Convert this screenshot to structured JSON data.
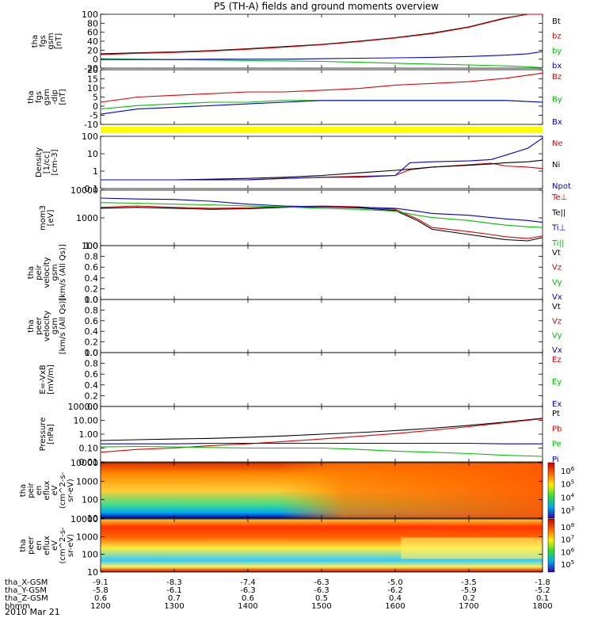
{
  "title": "P5 (TH-A) fields and ground moments overview",
  "date_label": "2010 Mar 21",
  "colors": {
    "black": "#000000",
    "red": "#e00000",
    "green": "#00c000",
    "blue": "#0000d0",
    "yellow": "#ffff00"
  },
  "chart_data": [
    {
      "type": "line",
      "id": "fgs",
      "ylabel": [
        "tha",
        "fgs",
        "gsm",
        "[nT]"
      ],
      "yticks": [
        "100",
        "80",
        "60",
        "40",
        "20",
        "0",
        "-20"
      ],
      "ylim": [
        -20,
        100
      ],
      "legend": [
        {
          "name": "Bt",
          "color": "black"
        },
        {
          "name": "bz",
          "color": "red"
        },
        {
          "name": "by",
          "color": "green"
        },
        {
          "name": "bx",
          "color": "blue"
        }
      ],
      "x": [
        12.0,
        12.5,
        13.0,
        13.5,
        14.0,
        14.5,
        15.0,
        15.5,
        16.0,
        16.5,
        17.0,
        17.5,
        17.8,
        18.0
      ],
      "series": [
        {
          "name": "Bt",
          "color": "black",
          "values": [
            12,
            14,
            16,
            19,
            23,
            28,
            33,
            40,
            48,
            58,
            72,
            92,
            102,
            110
          ]
        },
        {
          "name": "bz",
          "color": "red",
          "values": [
            10,
            13,
            15,
            18,
            22,
            27,
            32,
            39,
            47,
            57,
            71,
            91,
            101,
            109
          ]
        },
        {
          "name": "by",
          "color": "green",
          "values": [
            1,
            0,
            -1,
            -2,
            -3,
            -4,
            -5,
            -7,
            -9,
            -11,
            -13,
            -15,
            -17,
            -19
          ]
        },
        {
          "name": "bx",
          "color": "blue",
          "values": [
            -1,
            -1,
            -1,
            0,
            0,
            0,
            1,
            2,
            3,
            4,
            6,
            9,
            12,
            17
          ]
        }
      ]
    },
    {
      "type": "line",
      "id": "fgs_dip",
      "ylabel": [
        "tha",
        "fgs",
        "gsm",
        "-dip",
        "[nT]"
      ],
      "yticks": [
        "20",
        "15",
        "10",
        "5",
        "0",
        "-5",
        "-10"
      ],
      "ylim": [
        -12,
        20
      ],
      "legend": [
        {
          "name": "Bz",
          "color": "red"
        },
        {
          "name": "By",
          "color": "green"
        },
        {
          "name": "Bx",
          "color": "blue"
        }
      ],
      "x": [
        12.0,
        12.5,
        13.0,
        13.5,
        14.0,
        14.5,
        15.0,
        15.5,
        16.0,
        16.5,
        17.0,
        17.5,
        18.0
      ],
      "series": [
        {
          "name": "Bz",
          "color": "red",
          "values": [
            1,
            4,
            5,
            6,
            7,
            7,
            8,
            9,
            11,
            12,
            13,
            15,
            18
          ]
        },
        {
          "name": "By",
          "color": "green",
          "values": [
            -3,
            -1,
            0,
            1,
            1,
            2,
            2,
            2,
            2,
            2,
            2,
            2,
            1
          ]
        },
        {
          "name": "Bx",
          "color": "blue",
          "values": [
            -6,
            -3,
            -2,
            -1,
            0,
            1,
            2,
            2,
            2,
            2,
            2,
            2,
            1
          ]
        }
      ]
    },
    {
      "type": "line",
      "id": "density",
      "log": true,
      "ylabel": [
        "Density",
        "[1/cc]",
        "[cm-3]"
      ],
      "yticks": [
        "100",
        "10",
        "1",
        "0.1"
      ],
      "ylim": [
        0.05,
        200
      ],
      "legend": [
        {
          "name": "Ne",
          "color": "red"
        },
        {
          "name": "Ni",
          "color": "black"
        },
        {
          "name": "Npot",
          "color": "blue"
        }
      ],
      "x": [
        12.0,
        12.5,
        13.0,
        13.5,
        14.0,
        14.5,
        15.0,
        15.5,
        16.0,
        16.2,
        16.5,
        17.0,
        17.3,
        17.5,
        17.8,
        18.0
      ],
      "series": [
        {
          "name": "Ne",
          "color": "red",
          "values": [
            0.2,
            0.2,
            0.2,
            0.2,
            0.2,
            0.25,
            0.3,
            0.35,
            0.4,
            1.0,
            1.5,
            2.2,
            2.8,
            1.8,
            1.5,
            1.2
          ]
        },
        {
          "name": "Ni",
          "color": "black",
          "values": [
            0.2,
            0.2,
            0.2,
            0.22,
            0.25,
            0.3,
            0.4,
            0.6,
            0.9,
            1.1,
            1.5,
            2.0,
            2.5,
            3,
            3.5,
            4.5
          ]
        },
        {
          "name": "Npot",
          "color": "blue",
          "values": [
            0.2,
            0.2,
            0.2,
            0.2,
            0.2,
            0.25,
            0.3,
            0.3,
            0.4,
            3,
            3.5,
            4,
            5,
            10,
            30,
            150
          ]
        }
      ]
    },
    {
      "type": "line",
      "id": "temp",
      "log": true,
      "ylabel": [
        "mom3",
        "[eV]"
      ],
      "yticks": [
        "10000",
        "1000",
        "100"
      ],
      "ylim": [
        50,
        12000
      ],
      "legend": [
        {
          "name": "Te⊥",
          "color": "red"
        },
        {
          "name": "Te||",
          "color": "black"
        },
        {
          "name": "Ti⊥",
          "color": "blue"
        },
        {
          "name": "Ti||",
          "color": "green"
        }
      ],
      "x": [
        12.0,
        12.5,
        13.0,
        13.5,
        14.0,
        14.5,
        15.0,
        15.5,
        16.0,
        16.3,
        16.5,
        17.0,
        17.3,
        17.5,
        17.8,
        18.0
      ],
      "series": [
        {
          "name": "Te⊥",
          "color": "red",
          "values": [
            2200,
            2500,
            2200,
            2000,
            2100,
            2300,
            2500,
            2300,
            1800,
            700,
            300,
            200,
            150,
            120,
            100,
            130
          ]
        },
        {
          "name": "Te||",
          "color": "black",
          "values": [
            2000,
            2200,
            2000,
            1800,
            1900,
            2200,
            2300,
            2100,
            1600,
            600,
            250,
            150,
            110,
            90,
            80,
            110
          ]
        },
        {
          "name": "Ti⊥",
          "color": "blue",
          "values": [
            5500,
            5000,
            4800,
            4000,
            3000,
            2500,
            2300,
            2200,
            2000,
            1500,
            1200,
            1000,
            800,
            700,
            600,
            500
          ]
        },
        {
          "name": "Ti||",
          "color": "green",
          "values": [
            3500,
            3300,
            3000,
            2800,
            2500,
            2300,
            2000,
            1800,
            1500,
            1000,
            800,
            600,
            450,
            380,
            320,
            300
          ]
        }
      ]
    },
    {
      "type": "line",
      "id": "vel1",
      "ylabel": [
        "tha",
        "peir",
        "velocity",
        "gsm",
        "[km/s (All Qs)]"
      ],
      "yticks": [
        "1.0",
        "0.8",
        "0.6",
        "0.4",
        "0.2",
        "0.0"
      ],
      "legend": [
        {
          "name": "Vt",
          "color": "black"
        },
        {
          "name": "Vz",
          "color": "red"
        },
        {
          "name": "Vy",
          "color": "green"
        },
        {
          "name": "Vx",
          "color": "blue"
        }
      ]
    },
    {
      "type": "line",
      "id": "vel2",
      "ylabel": [
        "tha",
        "peer",
        "velocity",
        "gsm",
        "[km/s (All Qs)]"
      ],
      "yticks": [
        "1.0",
        "0.8",
        "0.6",
        "0.4",
        "0.2",
        "0.0"
      ],
      "legend": [
        {
          "name": "Vt",
          "color": "black"
        },
        {
          "name": "Vz",
          "color": "red"
        },
        {
          "name": "Vy",
          "color": "green"
        },
        {
          "name": "Vx",
          "color": "blue"
        }
      ]
    },
    {
      "type": "line",
      "id": "efield",
      "ylabel": [
        "E=-VxB",
        "[mV/m]"
      ],
      "yticks": [
        "1.0",
        "0.8",
        "0.6",
        "0.4",
        "0.2",
        "0.0"
      ],
      "legend": [
        {
          "name": "Ez",
          "color": "red"
        },
        {
          "name": "Ey",
          "color": "green"
        },
        {
          "name": "Ex",
          "color": "blue"
        }
      ]
    },
    {
      "type": "line",
      "id": "pressure",
      "log": true,
      "ylabel": [
        "Pressure",
        "[nPa]"
      ],
      "yticks": [
        "100.00",
        "10.00",
        "1.00",
        "0.10",
        "0.01"
      ],
      "ylim": [
        0.01,
        100
      ],
      "legend": [
        {
          "name": "Pt",
          "color": "black"
        },
        {
          "name": "Pb",
          "color": "red"
        },
        {
          "name": "Pe",
          "color": "green"
        },
        {
          "name": "Pi",
          "color": "blue"
        }
      ],
      "x": [
        12.0,
        12.5,
        13.0,
        13.5,
        14.0,
        14.5,
        15.0,
        15.5,
        16.0,
        16.5,
        17.0,
        17.5,
        18.0
      ],
      "series": [
        {
          "name": "Pt",
          "color": "black",
          "values": [
            0.35,
            0.4,
            0.45,
            0.5,
            0.6,
            0.75,
            1.0,
            1.3,
            1.8,
            2.7,
            4.3,
            7.5,
            14
          ]
        },
        {
          "name": "Pb",
          "color": "red",
          "values": [
            0.05,
            0.08,
            0.1,
            0.15,
            0.2,
            0.3,
            0.45,
            0.7,
            1.1,
            1.9,
            3.5,
            6.8,
            13
          ]
        },
        {
          "name": "Pe",
          "color": "green",
          "values": [
            0.12,
            0.13,
            0.12,
            0.11,
            0.1,
            0.1,
            0.1,
            0.08,
            0.06,
            0.05,
            0.04,
            0.03,
            0.025
          ]
        },
        {
          "name": "Pi",
          "color": "blue",
          "values": [
            0.2,
            0.2,
            0.2,
            0.22,
            0.22,
            0.22,
            0.22,
            0.22,
            0.22,
            0.22,
            0.22,
            0.2,
            0.2
          ]
        }
      ]
    },
    {
      "type": "heatmap",
      "id": "peir_spec",
      "ylabel": [
        "tha",
        "peir",
        "en",
        "eflux",
        "eV",
        "(cm^2-s-",
        "sr-eV)"
      ],
      "yticks": [
        "10000",
        "1000",
        "100",
        "10"
      ],
      "colorbar": [
        "10^6",
        "10^5",
        "10^4",
        "10^3"
      ]
    },
    {
      "type": "heatmap",
      "id": "peer_spec",
      "ylabel": [
        "tha",
        "peer",
        "en",
        "eflux",
        "eV",
        "(cm^2-s-",
        "sr-eV)"
      ],
      "yticks": [
        "10000",
        "1000",
        "100",
        "10"
      ],
      "colorbar": [
        "10^8",
        "10^7",
        "10^6",
        "10^5"
      ]
    }
  ],
  "x_axis": {
    "row_labels": [
      "tha_X-GSM",
      "tha_Y-GSM",
      "tha_Z-GSM",
      "hhmm"
    ],
    "columns": [
      [
        "-9.1",
        "-5.8",
        "0.6",
        "1200"
      ],
      [
        "-8.3",
        "-6.1",
        "0.7",
        "1300"
      ],
      [
        "-7.4",
        "-6.3",
        "0.6",
        "1400"
      ],
      [
        "-6.3",
        "-6.3",
        "0.5",
        "1500"
      ],
      [
        "-5.0",
        "-6.2",
        "0.4",
        "1600"
      ],
      [
        "-3.5",
        "-5.9",
        "0.2",
        "1700"
      ],
      [
        "-1.8",
        "-5.2",
        "0.1",
        "1800"
      ]
    ]
  }
}
